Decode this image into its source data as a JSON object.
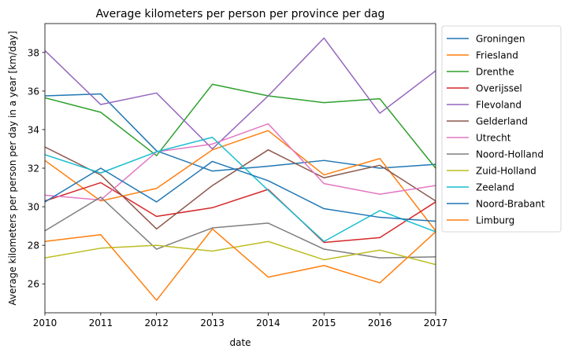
{
  "chart_data": {
    "type": "line",
    "title": "Average kilometers per person per province per dag",
    "xlabel": "date",
    "ylabel": "Average kilometers per person per day in a year [km/day]",
    "x": [
      "2010",
      "2011",
      "2012",
      "2013",
      "2014",
      "2015",
      "2016",
      "2017"
    ],
    "xlim": [
      2010,
      2017
    ],
    "ylim": [
      24.5,
      39.5
    ],
    "yticks": [
      "26",
      "28",
      "30",
      "32",
      "34",
      "36",
      "38"
    ],
    "grid": false,
    "legend_position": "outside-right",
    "series": [
      {
        "name": "Groningen",
        "color": "#1f77b4",
        "values": [
          35.75,
          35.85,
          32.9,
          31.85,
          32.1,
          32.4,
          32.0,
          32.2
        ]
      },
      {
        "name": "Friesland",
        "color": "#ff7f0e",
        "values": [
          32.4,
          30.3,
          30.95,
          32.95,
          33.95,
          31.65,
          32.5,
          28.75
        ]
      },
      {
        "name": "Drenthe",
        "color": "#2ca02c",
        "values": [
          35.65,
          34.9,
          32.65,
          36.35,
          35.75,
          35.4,
          35.6,
          32.0
        ]
      },
      {
        "name": "Overijssel",
        "color": "#d62728",
        "values": [
          30.3,
          31.25,
          29.5,
          29.95,
          30.9,
          28.15,
          28.4,
          30.25
        ]
      },
      {
        "name": "Flevoland",
        "color": "#9467bd",
        "values": [
          38.1,
          35.3,
          35.9,
          33.0,
          35.75,
          38.75,
          34.85,
          37.05
        ]
      },
      {
        "name": "Gelderland",
        "color": "#8c564b",
        "values": [
          33.1,
          31.65,
          28.85,
          31.1,
          32.95,
          31.5,
          32.15,
          30.3
        ]
      },
      {
        "name": "Utrecht",
        "color": "#e377c2",
        "values": [
          30.6,
          30.35,
          32.85,
          33.25,
          34.3,
          31.2,
          30.65,
          31.1
        ]
      },
      {
        "name": "Noord-Holland",
        "color": "#7f7f7f",
        "values": [
          28.75,
          30.5,
          27.8,
          28.9,
          29.15,
          27.8,
          27.35,
          27.4
        ]
      },
      {
        "name": "Zuid-Holland",
        "color": "#bcbd22",
        "values": [
          27.35,
          27.85,
          28.0,
          27.7,
          28.2,
          27.25,
          27.75,
          27.0
        ]
      },
      {
        "name": "Zeeland",
        "color": "#17becf",
        "values": [
          32.7,
          31.75,
          32.85,
          33.6,
          30.85,
          28.2,
          29.8,
          28.7
        ]
      },
      {
        "name": "Noord-Brabant",
        "color": "#1f77b4",
        "values": [
          30.25,
          32.0,
          30.25,
          32.35,
          31.35,
          29.9,
          29.45,
          29.25
        ]
      },
      {
        "name": "Limburg",
        "color": "#ff7f0e",
        "values": [
          28.2,
          28.55,
          25.15,
          28.85,
          26.35,
          26.95,
          26.05,
          28.7
        ]
      }
    ]
  }
}
